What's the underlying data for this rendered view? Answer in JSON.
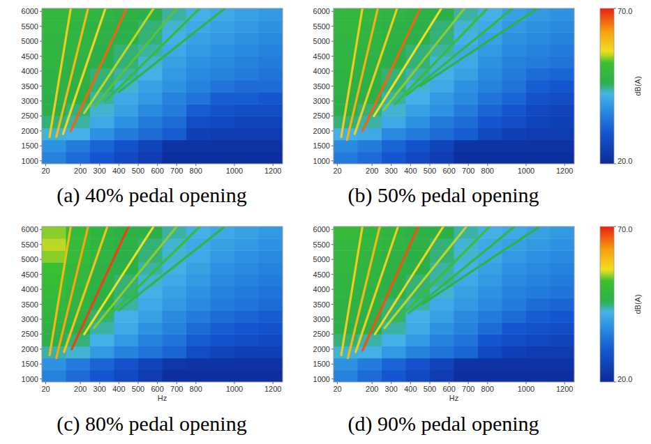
{
  "chart_data": [
    {
      "type": "heatmap",
      "title": "(a) 40% pedal opening",
      "xlim": [
        0,
        1250
      ],
      "xticks": [
        20,
        200,
        300,
        400,
        500,
        600,
        700,
        800,
        1000,
        1200
      ],
      "ylim": [
        900,
        6100
      ],
      "yticks": [
        1000,
        1500,
        2000,
        2500,
        3000,
        3500,
        4000,
        4500,
        5000,
        5500,
        6000
      ],
      "x_edges": [
        0,
        125,
        250,
        375,
        500,
        625,
        750,
        875,
        1000,
        1125,
        1250
      ],
      "y_edges": [
        900,
        1300,
        1700,
        2100,
        2500,
        2900,
        3300,
        3700,
        4100,
        4500,
        4900,
        5300,
        5700,
        6100
      ],
      "cells": [
        [
          36,
          33,
          30,
          27,
          24,
          21,
          21,
          21,
          21,
          21
        ],
        [
          38,
          35,
          32,
          29,
          26,
          22,
          22,
          22,
          22,
          22
        ],
        [
          43,
          42,
          38,
          35,
          33,
          31,
          25,
          24,
          24,
          24
        ],
        [
          45,
          44,
          41,
          38,
          35,
          33,
          28,
          27,
          26,
          26
        ],
        [
          46,
          45,
          43,
          40,
          37,
          35,
          31,
          29,
          28,
          28
        ],
        [
          46,
          46,
          44,
          41,
          39,
          36,
          34,
          31,
          31,
          30
        ],
        [
          47,
          46,
          45,
          43,
          40,
          38,
          36,
          34,
          33,
          33
        ],
        [
          47,
          47,
          45,
          44,
          42,
          39,
          37,
          36,
          35,
          34
        ],
        [
          48,
          47,
          46,
          45,
          43,
          40,
          38,
          37,
          36,
          35
        ],
        [
          48,
          48,
          46,
          45,
          44,
          41,
          39,
          38,
          37,
          36
        ],
        [
          48,
          48,
          47,
          46,
          45,
          42,
          40,
          39,
          38,
          37
        ],
        [
          49,
          48,
          47,
          46,
          45,
          43,
          41,
          40,
          39,
          38
        ],
        [
          49,
          49,
          48,
          47,
          46,
          44,
          42,
          41,
          40,
          39
        ]
      ],
      "ridges": [
        {
          "x": [
            40,
            150
          ],
          "y": [
            1800,
            6100
          ],
          "level": 58
        },
        {
          "x": [
            75,
            240
          ],
          "y": [
            1800,
            6100
          ],
          "level": 60
        },
        {
          "x": [
            110,
            330
          ],
          "y": [
            1900,
            6100
          ],
          "level": 57
        },
        {
          "x": [
            150,
            440
          ],
          "y": [
            2000,
            6100
          ],
          "level": 66
        },
        {
          "x": [
            220,
            580
          ],
          "y": [
            2600,
            6100
          ],
          "level": 55
        },
        {
          "x": [
            270,
            700
          ],
          "y": [
            2800,
            6100
          ],
          "level": 53
        },
        {
          "x": [
            330,
            820
          ],
          "y": [
            3000,
            6100
          ],
          "level": 50
        },
        {
          "x": [
            400,
            950
          ],
          "y": [
            3300,
            6100
          ],
          "level": 48
        }
      ]
    },
    {
      "type": "heatmap",
      "title": "(b) 50% pedal opening",
      "xlim": [
        0,
        1250
      ],
      "xticks": [
        20,
        200,
        300,
        400,
        500,
        600,
        700,
        800,
        1000,
        1200
      ],
      "ylim": [
        900,
        6100
      ],
      "yticks": [
        1000,
        1500,
        2000,
        2500,
        3000,
        3500,
        4000,
        4500,
        5000,
        5500,
        6000
      ],
      "x_edges": [
        0,
        125,
        250,
        375,
        500,
        625,
        750,
        875,
        1000,
        1125,
        1250
      ],
      "y_edges": [
        900,
        1300,
        1700,
        2100,
        2500,
        2900,
        3300,
        3700,
        4100,
        4500,
        4900,
        5300,
        5700,
        6100
      ],
      "cells": [
        [
          35,
          33,
          30,
          27,
          24,
          21,
          21,
          21,
          21,
          21
        ],
        [
          37,
          35,
          32,
          29,
          26,
          22,
          22,
          22,
          22,
          22
        ],
        [
          42,
          41,
          37,
          35,
          33,
          31,
          27,
          25,
          24,
          24
        ],
        [
          45,
          44,
          41,
          38,
          35,
          33,
          30,
          28,
          26,
          25
        ],
        [
          46,
          45,
          43,
          40,
          38,
          35,
          32,
          30,
          27,
          26
        ],
        [
          46,
          46,
          44,
          42,
          39,
          37,
          34,
          32,
          29,
          28
        ],
        [
          47,
          46,
          45,
          43,
          41,
          38,
          36,
          34,
          31,
          30
        ],
        [
          47,
          47,
          45,
          44,
          42,
          40,
          37,
          35,
          33,
          32
        ],
        [
          48,
          47,
          46,
          45,
          43,
          41,
          38,
          36,
          35,
          34
        ],
        [
          48,
          48,
          46,
          45,
          44,
          41,
          39,
          37,
          36,
          35
        ],
        [
          48,
          48,
          47,
          46,
          45,
          42,
          40,
          38,
          37,
          36
        ],
        [
          49,
          48,
          47,
          46,
          45,
          43,
          41,
          39,
          38,
          37
        ],
        [
          49,
          49,
          48,
          47,
          46,
          44,
          42,
          40,
          39,
          38
        ]
      ],
      "ridges": [
        {
          "x": [
            40,
            150
          ],
          "y": [
            1800,
            6100
          ],
          "level": 58
        },
        {
          "x": [
            70,
            230
          ],
          "y": [
            1700,
            6100
          ],
          "level": 61
        },
        {
          "x": [
            110,
            330
          ],
          "y": [
            1900,
            6100
          ],
          "level": 58
        },
        {
          "x": [
            150,
            450
          ],
          "y": [
            2000,
            6100
          ],
          "level": 66
        },
        {
          "x": [
            210,
            560
          ],
          "y": [
            2500,
            6100
          ],
          "level": 56
        },
        {
          "x": [
            260,
            680
          ],
          "y": [
            2700,
            6100
          ],
          "level": 54
        },
        {
          "x": [
            320,
            800
          ],
          "y": [
            2900,
            6100
          ],
          "level": 51
        },
        {
          "x": [
            380,
            930
          ],
          "y": [
            3200,
            6100
          ],
          "level": 49
        },
        {
          "x": [
            450,
            1060
          ],
          "y": [
            3500,
            6100
          ],
          "level": 47
        }
      ],
      "colorbar": {
        "range": [
          20,
          70
        ],
        "ticks": [
          {
            "value": 70,
            "label": "70.0"
          },
          {
            "value": 20,
            "label": "20.0"
          }
        ],
        "label": "dB(A)"
      }
    },
    {
      "type": "heatmap",
      "title": "(c) 80% pedal opening",
      "x_label": "Hz",
      "xlim": [
        0,
        1250
      ],
      "xticks": [
        20,
        200,
        300,
        400,
        500,
        600,
        700,
        800,
        1000,
        1200
      ],
      "ylim": [
        900,
        6100
      ],
      "yticks": [
        1000,
        1500,
        2000,
        2500,
        3000,
        3500,
        4000,
        4500,
        5000,
        5500,
        6000
      ],
      "x_edges": [
        0,
        125,
        250,
        375,
        500,
        625,
        750,
        875,
        1000,
        1125,
        1250
      ],
      "y_edges": [
        900,
        1300,
        1700,
        2100,
        2500,
        2900,
        3300,
        3700,
        4100,
        4500,
        4900,
        5300,
        5700,
        6100
      ],
      "cells": [
        [
          36,
          33,
          30,
          27,
          24,
          21,
          21,
          21,
          21,
          21
        ],
        [
          38,
          35,
          32,
          29,
          26,
          23,
          22,
          22,
          22,
          22
        ],
        [
          44,
          43,
          39,
          36,
          34,
          32,
          28,
          26,
          25,
          25
        ],
        [
          46,
          45,
          42,
          39,
          36,
          34,
          31,
          29,
          28,
          27
        ],
        [
          47,
          46,
          44,
          41,
          38,
          36,
          33,
          31,
          30,
          29
        ],
        [
          48,
          47,
          45,
          42,
          40,
          37,
          35,
          33,
          32,
          31
        ],
        [
          49,
          48,
          46,
          44,
          41,
          39,
          37,
          35,
          34,
          33
        ],
        [
          50,
          48,
          46,
          45,
          42,
          40,
          38,
          36,
          35,
          34
        ],
        [
          51,
          49,
          47,
          45,
          43,
          41,
          39,
          37,
          36,
          35
        ],
        [
          52,
          49,
          47,
          46,
          44,
          42,
          40,
          38,
          37,
          36
        ],
        [
          54,
          50,
          48,
          46,
          45,
          43,
          41,
          39,
          38,
          37
        ],
        [
          55,
          50,
          48,
          47,
          45,
          43,
          41,
          40,
          39,
          38
        ],
        [
          54,
          50,
          48,
          47,
          46,
          44,
          42,
          41,
          40,
          39
        ]
      ],
      "ridges": [
        {
          "x": [
            40,
            150
          ],
          "y": [
            1800,
            6100
          ],
          "level": 60
        },
        {
          "x": [
            75,
            240
          ],
          "y": [
            1700,
            6100
          ],
          "level": 62
        },
        {
          "x": [
            115,
            340
          ],
          "y": [
            1900,
            6100
          ],
          "level": 59
        },
        {
          "x": [
            155,
            450
          ],
          "y": [
            2000,
            6100
          ],
          "level": 68
        },
        {
          "x": [
            220,
            580
          ],
          "y": [
            2500,
            6100
          ],
          "level": 56
        },
        {
          "x": [
            270,
            700
          ],
          "y": [
            2700,
            6100
          ],
          "level": 54
        },
        {
          "x": [
            330,
            820
          ],
          "y": [
            3000,
            6100
          ],
          "level": 51
        },
        {
          "x": [
            400,
            950
          ],
          "y": [
            3300,
            6100
          ],
          "level": 48
        }
      ]
    },
    {
      "type": "heatmap",
      "title": "(d) 90% pedal opening",
      "x_label": "Hz",
      "xlim": [
        0,
        1250
      ],
      "xticks": [
        20,
        200,
        300,
        400,
        500,
        600,
        700,
        800,
        1000,
        1200
      ],
      "ylim": [
        900,
        6100
      ],
      "yticks": [
        1000,
        1500,
        2000,
        2500,
        3000,
        3500,
        4000,
        4500,
        5000,
        5500,
        6000
      ],
      "x_edges": [
        0,
        125,
        250,
        375,
        500,
        625,
        750,
        875,
        1000,
        1125,
        1250
      ],
      "y_edges": [
        900,
        1300,
        1700,
        2100,
        2500,
        2900,
        3300,
        3700,
        4100,
        4500,
        4900,
        5300,
        5700,
        6100
      ],
      "cells": [
        [
          36,
          33,
          30,
          27,
          24,
          21,
          21,
          21,
          21,
          21
        ],
        [
          38,
          35,
          32,
          29,
          26,
          22,
          22,
          22,
          22,
          22
        ],
        [
          43,
          42,
          39,
          36,
          34,
          32,
          27,
          25,
          24,
          24
        ],
        [
          45,
          44,
          42,
          39,
          36,
          34,
          30,
          28,
          27,
          26
        ],
        [
          46,
          46,
          44,
          41,
          38,
          36,
          33,
          30,
          29,
          28
        ],
        [
          47,
          46,
          45,
          42,
          40,
          37,
          35,
          33,
          31,
          30
        ],
        [
          47,
          47,
          45,
          44,
          41,
          39,
          37,
          35,
          33,
          32
        ],
        [
          48,
          47,
          46,
          45,
          43,
          40,
          38,
          36,
          35,
          34
        ],
        [
          48,
          48,
          46,
          45,
          44,
          41,
          39,
          37,
          36,
          35
        ],
        [
          49,
          48,
          47,
          46,
          44,
          42,
          40,
          38,
          37,
          36
        ],
        [
          49,
          48,
          47,
          46,
          45,
          43,
          41,
          39,
          38,
          37
        ],
        [
          49,
          49,
          48,
          47,
          45,
          43,
          41,
          40,
          39,
          38
        ],
        [
          50,
          49,
          48,
          47,
          46,
          44,
          42,
          41,
          40,
          39
        ]
      ],
      "ridges": [
        {
          "x": [
            40,
            150
          ],
          "y": [
            1800,
            6100
          ],
          "level": 58
        },
        {
          "x": [
            75,
            240
          ],
          "y": [
            1700,
            6100
          ],
          "level": 60
        },
        {
          "x": [
            115,
            335
          ],
          "y": [
            1900,
            6100
          ],
          "level": 58
        },
        {
          "x": [
            150,
            440
          ],
          "y": [
            1950,
            6100
          ],
          "level": 67
        },
        {
          "x": [
            215,
            570
          ],
          "y": [
            2500,
            6100
          ],
          "level": 57
        },
        {
          "x": [
            265,
            690
          ],
          "y": [
            2700,
            6100
          ],
          "level": 55
        },
        {
          "x": [
            320,
            810
          ],
          "y": [
            2900,
            6100
          ],
          "level": 52
        },
        {
          "x": [
            390,
            940
          ],
          "y": [
            3200,
            6100
          ],
          "level": 49
        },
        {
          "x": [
            460,
            1070
          ],
          "y": [
            3500,
            6100
          ],
          "level": 47
        }
      ],
      "colorbar": {
        "range": [
          20,
          70
        ],
        "ticks": [
          {
            "value": 70,
            "label": "70.0"
          },
          {
            "value": 20,
            "label": "20.0"
          }
        ],
        "label": "dB(A)"
      }
    }
  ]
}
